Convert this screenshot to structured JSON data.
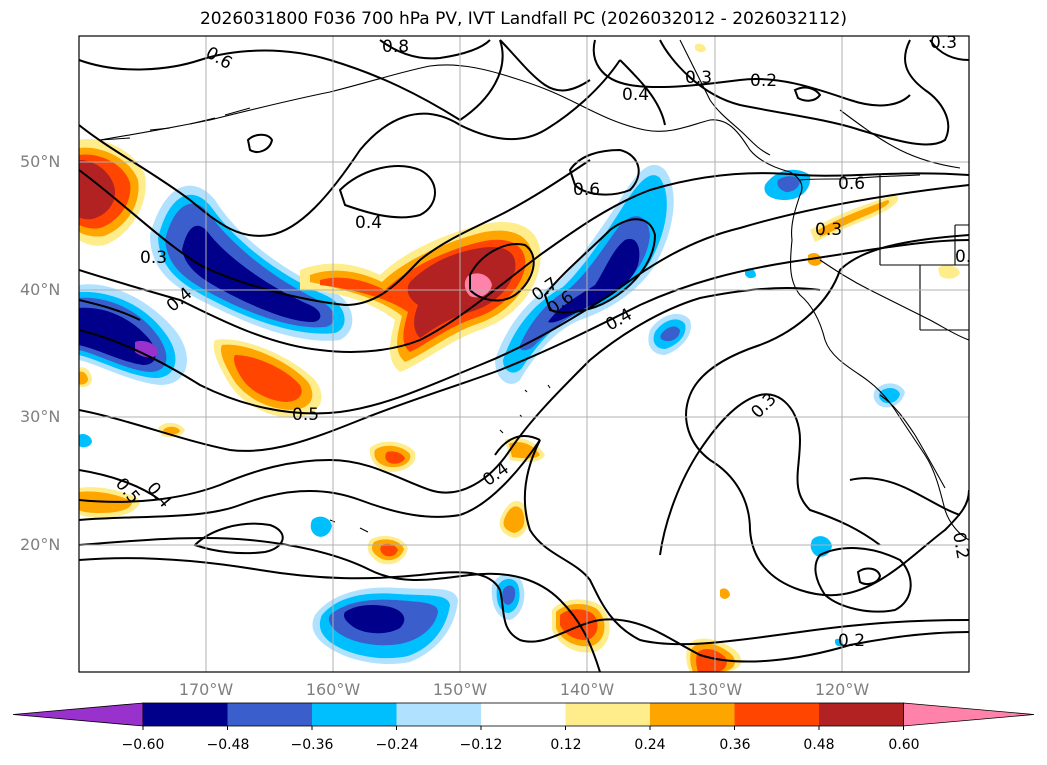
{
  "title": "2026031800 F036 700 hPa PV, IVT Landfall PC (2026032012 - 2026032112)",
  "map": {
    "lat_labels": [
      "50°N",
      "40°N",
      "30°N",
      "20°N"
    ],
    "lon_labels": [
      "170°W",
      "160°W",
      "150°W",
      "140°W",
      "130°W",
      "120°W"
    ],
    "pv_contour_labels": [
      "0.6",
      "0.8",
      "0.4",
      "0.2",
      "0.3",
      "0.6",
      "0.4",
      "0.6",
      "0.3",
      "0.3",
      "0.4",
      "0.7",
      "0.6",
      "0.4",
      "0.5",
      "0.3",
      "0.4",
      "0.5",
      "0.4",
      "0.2",
      "0.2",
      "0.3",
      "0.3"
    ]
  },
  "colorbar": {
    "ticks": [
      "−0.60",
      "−0.48",
      "−0.36",
      "−0.24",
      "−0.12",
      "0.12",
      "0.24",
      "0.36",
      "0.48",
      "0.60"
    ],
    "colors": [
      "#9932CC",
      "#00008B",
      "#3A5FCD",
      "#00BFFF",
      "#B0E2FF",
      "#FFFFFF",
      "#FFEC8B",
      "#FFA500",
      "#FF4500",
      "#B22222",
      "#FF82AB"
    ]
  }
}
